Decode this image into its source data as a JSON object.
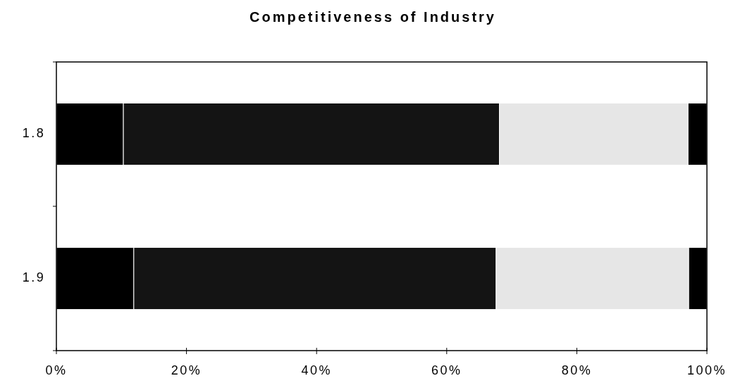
{
  "chart_data": {
    "type": "bar",
    "title": "Competitiveness of Industry",
    "orientation": "horizontal",
    "stacked": true,
    "categories": [
      "1.8",
      "1.9"
    ],
    "series": [
      {
        "color": "#000000",
        "values": [
          10.3,
          11.9
        ]
      },
      {
        "color": "#141414",
        "values": [
          57.8,
          55.7
        ]
      },
      {
        "color": "#e6e6e6",
        "values": [
          29.0,
          29.6
        ]
      },
      {
        "color": "#000000",
        "values": [
          2.9,
          2.8
        ]
      }
    ],
    "xlim": [
      0,
      100
    ],
    "xticks": [
      {
        "value": 0,
        "label": "0%"
      },
      {
        "value": 20,
        "label": "20%"
      },
      {
        "value": 40,
        "label": "40%"
      },
      {
        "value": 60,
        "label": "60%"
      },
      {
        "value": 80,
        "label": "80%"
      },
      {
        "value": 100,
        "label": "100%"
      }
    ]
  }
}
